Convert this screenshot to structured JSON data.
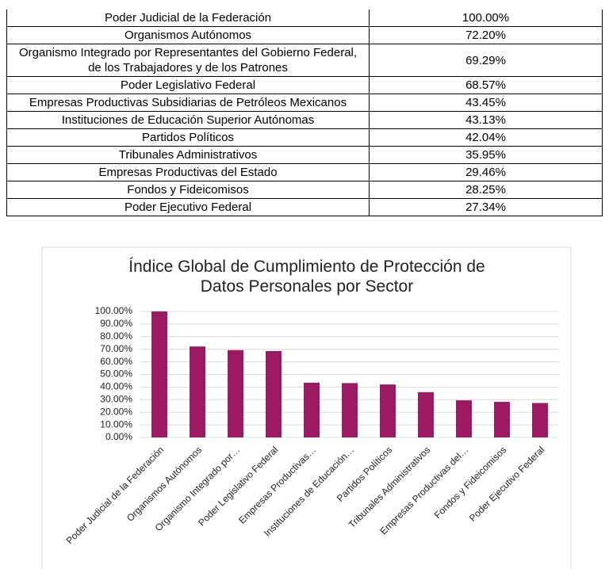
{
  "table": {
    "rows": [
      [
        "Poder Judicial de la Federación",
        "100.00%"
      ],
      [
        "Organismos Autónomos",
        "72.20%"
      ],
      [
        "Organismo Integrado por Representantes del Gobierno Federal, de los Trabajadores y de los Patrones",
        "69.29%"
      ],
      [
        "Poder Legislativo Federal",
        "68.57%"
      ],
      [
        "Empresas Productivas Subsidiarias de Petróleos Mexicanos",
        "43.45%"
      ],
      [
        "Instituciones de Educación Superior Autónomas",
        "43.13%"
      ],
      [
        "Partidos Políticos",
        "42.04%"
      ],
      [
        "Tribunales Administrativos",
        "35.95%"
      ],
      [
        "Empresas Productivas del Estado",
        "29.46%"
      ],
      [
        "Fondos y Fideicomisos",
        "28.25%"
      ],
      [
        "Poder Ejecutivo Federal",
        "27.34%"
      ]
    ]
  },
  "chart_data": {
    "type": "bar",
    "title": "Índice Global de Cumplimiento de Protección de Datos Personales por Sector",
    "categories": [
      "Poder Judicial de la Federación",
      "Organismos Autónomos",
      "Organismo Integrado por…",
      "Poder Legislativo Federal",
      "Empresas Productivas…",
      "Instituciones de Educación…",
      "Partidos Políticos",
      "Tribunales Administrativos",
      "Empresas Productivas del…",
      "Fondos y Fideicomisos",
      "Poder Ejecutivo Federal"
    ],
    "values": [
      100,
      72.2,
      69.29,
      68.57,
      43.45,
      43.13,
      42.04,
      35.95,
      29.46,
      28.25,
      27.34
    ],
    "color": "#9c1a64",
    "ylim": [
      0,
      100
    ],
    "yticks": [
      {
        "value": 0,
        "label": "0.00%"
      },
      {
        "value": 10,
        "label": "10.00%"
      },
      {
        "value": 20,
        "label": "20.00%"
      },
      {
        "value": 30,
        "label": "30.00%"
      },
      {
        "value": 40,
        "label": "40.00%"
      },
      {
        "value": 50,
        "label": "50.00%"
      },
      {
        "value": 60,
        "label": "60.00%"
      },
      {
        "value": 70,
        "label": "70.00%"
      },
      {
        "value": 80,
        "label": "80.00%"
      },
      {
        "value": 90,
        "label": "90.00%"
      },
      {
        "value": 100,
        "label": "100.00%"
      }
    ],
    "grid": true
  }
}
